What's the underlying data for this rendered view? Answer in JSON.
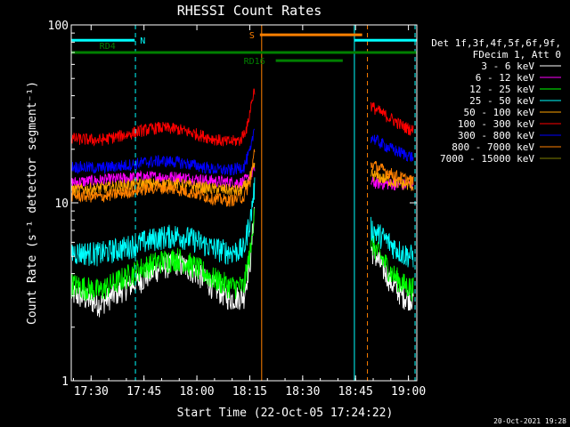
{
  "chart_data": {
    "type": "line",
    "title": "RHESSI Count Rates",
    "xlabel": "Start Time (22-Oct-05 17:24:22)",
    "ylabel": "Count Rate (s⁻¹ detector segment⁻¹)",
    "yscale": "log",
    "ylim": [
      1,
      100
    ],
    "xlim_minutes_from_start": [
      0,
      98
    ],
    "x_tick_labels": [
      "17:30",
      "17:45",
      "18:00",
      "18:15",
      "18:30",
      "18:45",
      "19:00"
    ],
    "x_tick_minutes": [
      5.63,
      20.63,
      35.63,
      50.63,
      65.63,
      80.63,
      95.63
    ],
    "y_tick_labels": [
      "1",
      "10",
      "100"
    ],
    "y_tick_values": [
      1,
      10,
      100
    ],
    "footer_date": "20-Oct-2021 19:28",
    "legend_header": [
      "Det 1f,3f,4f,5f,6f,9f,",
      "FDecim 1, Att 0"
    ],
    "series": [
      {
        "name": "3 - 6 keV",
        "color": "#ffffff",
        "before": [
          [
            0,
            3.1
          ],
          [
            8,
            2.7
          ],
          [
            15,
            3.3
          ],
          [
            20,
            3.7
          ],
          [
            25,
            4.3
          ],
          [
            30,
            4.6
          ],
          [
            35,
            4.1
          ],
          [
            40,
            3.4
          ],
          [
            45,
            2.9
          ],
          [
            49,
            3.0
          ],
          [
            51,
            5.0
          ],
          [
            52,
            9.5
          ]
        ],
        "after": [
          [
            85,
            5.5
          ],
          [
            88,
            4.4
          ],
          [
            91,
            3.5
          ],
          [
            94,
            3.0
          ],
          [
            97,
            2.9
          ]
        ]
      },
      {
        "name": "6 - 12 keV",
        "color": "#ff00ff",
        "before": [
          [
            0,
            13.0
          ],
          [
            10,
            13.5
          ],
          [
            20,
            14.0
          ],
          [
            30,
            14.0
          ],
          [
            40,
            13.3
          ],
          [
            48,
            13.0
          ],
          [
            50,
            13.6
          ],
          [
            52,
            15.5
          ]
        ],
        "after": [
          [
            85,
            13.0
          ],
          [
            90,
            12.8
          ],
          [
            97,
            12.6
          ]
        ]
      },
      {
        "name": "12 - 25 keV",
        "color": "#00ff00",
        "before": [
          [
            0,
            3.5
          ],
          [
            8,
            3.2
          ],
          [
            15,
            3.8
          ],
          [
            20,
            4.3
          ],
          [
            25,
            4.7
          ],
          [
            30,
            4.9
          ],
          [
            35,
            4.4
          ],
          [
            40,
            3.8
          ],
          [
            45,
            3.4
          ],
          [
            49,
            3.4
          ],
          [
            51,
            5.5
          ],
          [
            52,
            10.0
          ]
        ],
        "after": [
          [
            85,
            6.0
          ],
          [
            88,
            4.9
          ],
          [
            91,
            4.0
          ],
          [
            94,
            3.5
          ],
          [
            97,
            3.3
          ]
        ]
      },
      {
        "name": "25 - 50 keV",
        "color": "#00ffff",
        "before": [
          [
            0,
            5.3
          ],
          [
            8,
            5.2
          ],
          [
            15,
            5.6
          ],
          [
            20,
            6.0
          ],
          [
            25,
            6.4
          ],
          [
            30,
            6.6
          ],
          [
            35,
            6.2
          ],
          [
            40,
            5.6
          ],
          [
            45,
            5.3
          ],
          [
            49,
            5.5
          ],
          [
            51,
            8.5
          ],
          [
            52,
            12.5
          ]
        ],
        "after": [
          [
            85,
            7.2
          ],
          [
            88,
            6.5
          ],
          [
            91,
            5.8
          ],
          [
            94,
            5.2
          ],
          [
            97,
            5.0
          ]
        ]
      },
      {
        "name": "50 - 100 keV",
        "color": "#ffa500",
        "before": [
          [
            0,
            11.8
          ],
          [
            10,
            12.2
          ],
          [
            20,
            12.8
          ],
          [
            30,
            12.8
          ],
          [
            40,
            12.0
          ],
          [
            48,
            11.7
          ],
          [
            50,
            12.8
          ],
          [
            52,
            16.0
          ]
        ],
        "after": [
          [
            85,
            14.5
          ],
          [
            88,
            13.8
          ],
          [
            91,
            13.2
          ],
          [
            94,
            12.8
          ],
          [
            97,
            12.5
          ]
        ]
      },
      {
        "name": "100 - 300 keV",
        "color": "#ff0000",
        "before": [
          [
            0,
            23.0
          ],
          [
            8,
            22.5
          ],
          [
            15,
            24.0
          ],
          [
            20,
            25.5
          ],
          [
            25,
            26.5
          ],
          [
            30,
            26.0
          ],
          [
            35,
            24.5
          ],
          [
            40,
            23.0
          ],
          [
            44,
            22.0
          ],
          [
            48,
            22.5
          ],
          [
            50,
            27.0
          ],
          [
            52,
            44.0
          ]
        ],
        "after": [
          [
            85,
            35.0
          ],
          [
            88,
            32.0
          ],
          [
            91,
            29.5
          ],
          [
            94,
            27.0
          ],
          [
            97,
            25.5
          ]
        ]
      },
      {
        "name": "300 - 800 keV",
        "color": "#0000ff",
        "before": [
          [
            0,
            16.0
          ],
          [
            8,
            15.7
          ],
          [
            15,
            16.2
          ],
          [
            20,
            16.8
          ],
          [
            25,
            17.2
          ],
          [
            30,
            17.0
          ],
          [
            35,
            16.3
          ],
          [
            40,
            15.5
          ],
          [
            45,
            15.2
          ],
          [
            49,
            16.0
          ],
          [
            51,
            20.0
          ],
          [
            52,
            27.0
          ]
        ],
        "after": [
          [
            85,
            23.5
          ],
          [
            88,
            21.5
          ],
          [
            91,
            20.0
          ],
          [
            94,
            19.0
          ],
          [
            97,
            18.0
          ]
        ]
      },
      {
        "name": "800 - 7000 keV",
        "color": "#ff8000",
        "before": [
          [
            0,
            11.0
          ],
          [
            8,
            10.8
          ],
          [
            15,
            11.4
          ],
          [
            20,
            11.9
          ],
          [
            25,
            12.2
          ],
          [
            30,
            11.9
          ],
          [
            35,
            11.3
          ],
          [
            40,
            10.6
          ],
          [
            45,
            10.3
          ],
          [
            49,
            10.8
          ],
          [
            51,
            13.5
          ],
          [
            52,
            20.0
          ]
        ],
        "after": [
          [
            85,
            16.5
          ],
          [
            88,
            15.5
          ],
          [
            91,
            14.5
          ],
          [
            94,
            13.8
          ],
          [
            97,
            13.2
          ]
        ]
      },
      {
        "name": "7000 - 15000 keV",
        "color": "#808000",
        "before": [],
        "after": []
      }
    ],
    "annotations": [
      {
        "label": "N",
        "color": "#00ffff",
        "kind": "line",
        "x": [
          0,
          18
        ],
        "y": 82
      },
      {
        "label": "",
        "color": "#00ffff",
        "kind": "line",
        "x": [
          80.2,
          98
        ],
        "y": 82
      },
      {
        "label": "S",
        "color": "#ff8000",
        "kind": "line",
        "x": [
          53.5,
          82.5
        ],
        "y": 88
      },
      {
        "label": "RD4",
        "color": "#008000",
        "kind": "line",
        "x": [
          0,
          98
        ],
        "y": 70
      },
      {
        "label": "RD16",
        "color": "#008000",
        "kind": "line",
        "x": [
          58,
          77
        ],
        "y": 63
      }
    ],
    "vertical_lines": [
      {
        "x": 0,
        "color": "#00ffff",
        "style": "solid"
      },
      {
        "x": 18.2,
        "color": "#00ffff",
        "style": "dashed"
      },
      {
        "x": 54.0,
        "color": "#ff8000",
        "style": "solid"
      },
      {
        "x": 80.3,
        "color": "#00ffff",
        "style": "solid"
      },
      {
        "x": 84.0,
        "color": "#ff8000",
        "style": "dashed"
      },
      {
        "x": 97.5,
        "color": "#00ffff",
        "style": "dashed"
      }
    ]
  }
}
